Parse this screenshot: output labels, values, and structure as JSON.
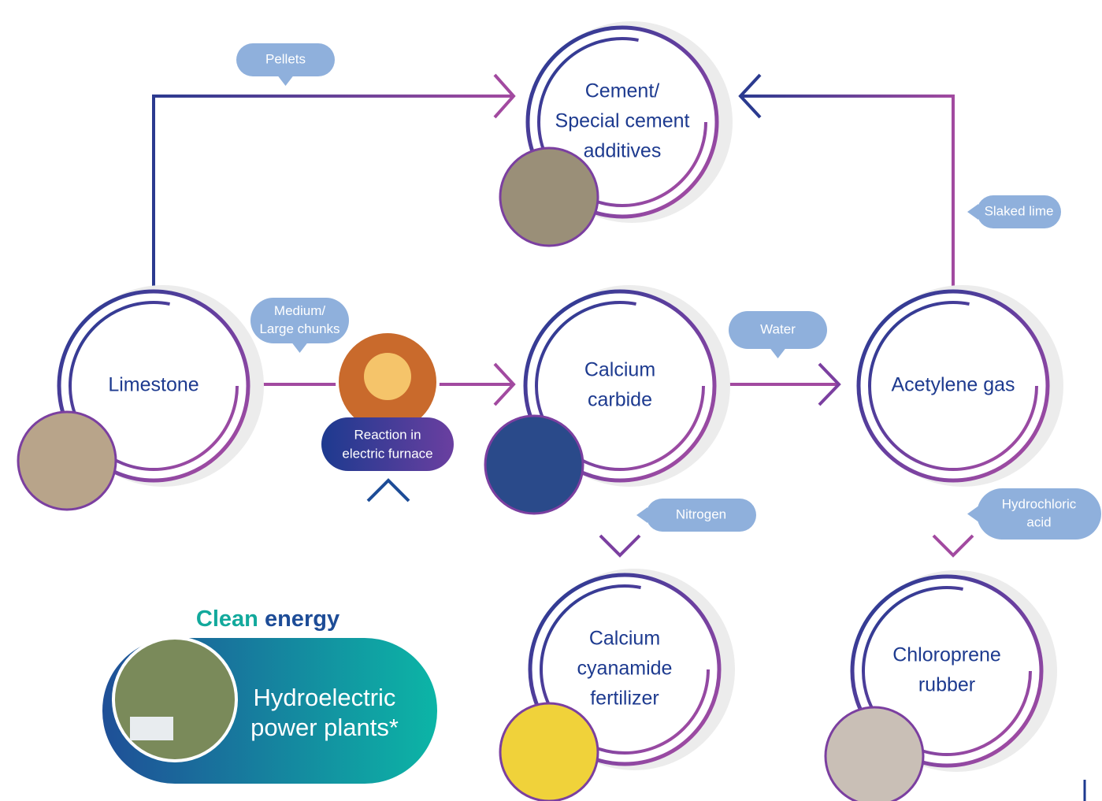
{
  "nodes": [
    {
      "label": [
        "Cement/",
        "Special cement",
        "additives"
      ]
    },
    {
      "label": [
        "Limestone"
      ]
    },
    {
      "label": [
        "Calcium",
        "carbide"
      ]
    },
    {
      "label": [
        "Acetylene gas"
      ]
    },
    {
      "label": [
        "Calcium",
        "cyanamide",
        "fertilizer"
      ]
    },
    {
      "label": [
        "Chloroprene",
        "rubber"
      ]
    }
  ],
  "edge_labels": [
    {
      "label": [
        "Pellets"
      ]
    },
    {
      "label": [
        "Medium/",
        "Large chunks"
      ]
    },
    {
      "label": [
        "Water"
      ]
    },
    {
      "label": [
        "Slaked lime"
      ]
    },
    {
      "label": [
        "Nitrogen"
      ]
    },
    {
      "label": [
        "Hydrochloric",
        "acid"
      ]
    }
  ],
  "process": {
    "label": [
      "Reaction in",
      "electric furnace"
    ]
  },
  "energy": {
    "title": [
      "Clean",
      "energy"
    ],
    "source": [
      "Hydroelectric",
      "power plants*"
    ]
  }
}
